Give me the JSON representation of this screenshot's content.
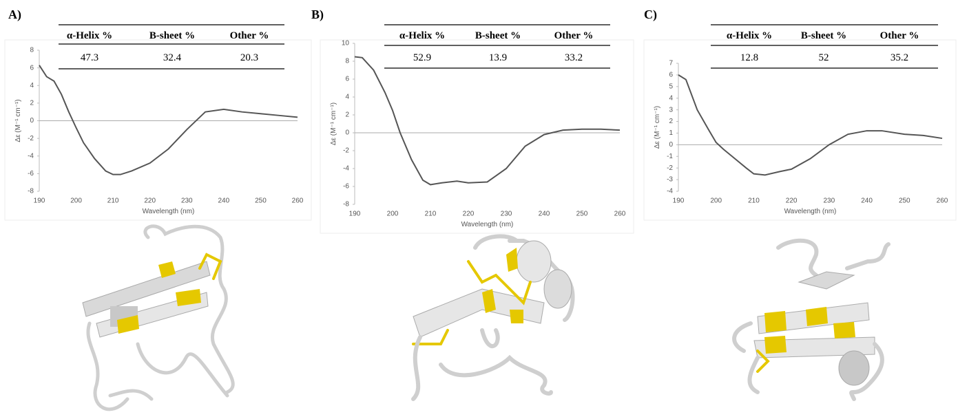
{
  "chart_data": [
    {
      "type": "line",
      "panel": "A)",
      "xlabel": "Wavelength (nm)",
      "ylabel": "Δε (M⁻¹ cm⁻¹)",
      "x": [
        190,
        192,
        194,
        196,
        198,
        200,
        202,
        205,
        208,
        210,
        212,
        215,
        220,
        225,
        230,
        235,
        240,
        245,
        250,
        255,
        260
      ],
      "series": [
        {
          "color": "#555555",
          "values": [
            6.3,
            5.0,
            4.5,
            3.0,
            1.0,
            -0.8,
            -2.5,
            -4.3,
            -5.7,
            -6.1,
            -6.1,
            -5.7,
            -4.8,
            -3.2,
            -1.0,
            1.0,
            1.3,
            1.0,
            0.8,
            0.6,
            0.4
          ]
        }
      ],
      "xlim": [
        190,
        260
      ],
      "xticks": [
        190,
        200,
        210,
        220,
        230,
        240,
        250,
        260
      ],
      "ylim": [
        -8,
        8
      ],
      "yticks": [
        -8,
        -6,
        -4,
        -2,
        0,
        2,
        4,
        6,
        8
      ],
      "table": {
        "columns": [
          "α-Helix %",
          "B-sheet %",
          "Other %"
        ],
        "values": [
          47.3,
          32.4,
          20.3
        ]
      }
    },
    {
      "type": "line",
      "panel": "B)",
      "xlabel": "Wavelength (nm)",
      "ylabel": "Δε (M⁻¹ cm⁻¹)",
      "x": [
        190,
        192,
        195,
        198,
        200,
        202,
        205,
        208,
        210,
        213,
        217,
        220,
        225,
        230,
        235,
        240,
        245,
        250,
        255,
        260
      ],
      "series": [
        {
          "color": "#555555",
          "values": [
            8.5,
            8.4,
            7.0,
            4.5,
            2.5,
            0,
            -3.0,
            -5.3,
            -5.8,
            -5.6,
            -5.4,
            -5.6,
            -5.5,
            -4.0,
            -1.5,
            -0.2,
            0.3,
            0.4,
            0.4,
            0.3
          ]
        }
      ],
      "xlim": [
        190,
        260
      ],
      "xticks": [
        190,
        200,
        210,
        220,
        230,
        240,
        250,
        260
      ],
      "ylim": [
        -8,
        10
      ],
      "yticks": [
        -8,
        -6,
        -4,
        -2,
        0,
        2,
        4,
        6,
        8,
        10
      ],
      "table": {
        "columns": [
          "α-Helix %",
          "B-sheet %",
          "Other %"
        ],
        "values": [
          52.9,
          13.9,
          33.2
        ]
      }
    },
    {
      "type": "line",
      "panel": "C)",
      "xlabel": "Wavelength  (nm)",
      "ylabel": "Δε (M⁻¹ cm⁻¹)",
      "x": [
        190,
        192,
        195,
        198,
        200,
        202,
        205,
        208,
        210,
        213,
        217,
        220,
        225,
        230,
        235,
        240,
        244,
        250,
        255,
        260
      ],
      "series": [
        {
          "color": "#555555",
          "values": [
            6.0,
            5.6,
            3.0,
            1.3,
            0.2,
            -0.4,
            -1.2,
            -2.0,
            -2.5,
            -2.6,
            -2.3,
            -2.1,
            -1.2,
            0.0,
            0.9,
            1.2,
            1.2,
            0.9,
            0.8,
            0.55
          ]
        }
      ],
      "xlim": [
        190,
        260
      ],
      "xticks": [
        190,
        200,
        210,
        220,
        230,
        240,
        250,
        260
      ],
      "ylim": [
        -4,
        7
      ],
      "yticks": [
        -4,
        -3,
        -2,
        -1,
        0,
        1,
        2,
        3,
        4,
        5,
        6,
        7
      ],
      "table": {
        "columns": [
          "α-Helix %",
          "B-sheet %",
          "Other %"
        ],
        "values": [
          12.8,
          52,
          35.2
        ]
      }
    }
  ]
}
